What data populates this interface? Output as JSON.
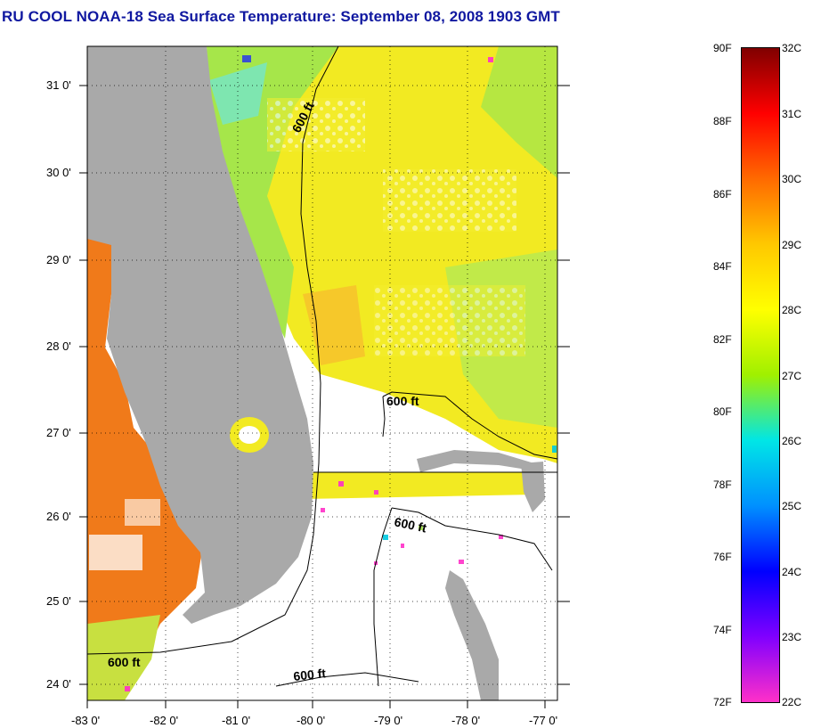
{
  "header": {
    "title": "RU COOL  NOAA-18  Sea Surface Temperature:  September 08, 2008 1903 GMT"
  },
  "map": {
    "lat_labels": [
      "31 0'",
      "30 0'",
      "29 0'",
      "28 0'",
      "27 0'",
      "26 0'",
      "25 0'",
      "24 0'"
    ],
    "lon_labels": [
      "-83 0'",
      "-82 0'",
      "-81 0'",
      "-80 0'",
      "-79 0'",
      "-78 0'",
      "-77 0'"
    ],
    "isobath_label": "600 ft",
    "colors": {
      "land": "#a9a9a9",
      "cloud": "#ffffff",
      "warm_gulf": "#f07a1a",
      "atlantic_yellow": "#f2ea22",
      "atlantic_green": "#a6e64a"
    }
  },
  "colorbar": {
    "fahrenheit": [
      "90F",
      "88F",
      "86F",
      "84F",
      "82F",
      "80F",
      "78F",
      "76F",
      "74F",
      "72F"
    ],
    "celsius": [
      "32C",
      "31C",
      "30C",
      "29C",
      "28C",
      "27C",
      "26C",
      "25C",
      "24C",
      "23C",
      "22C"
    ],
    "gradient": [
      "#800000",
      "#ff0000",
      "#ff6a00",
      "#ffc800",
      "#ffff00",
      "#a0f000",
      "#00e6e6",
      "#0090ff",
      "#0000ff",
      "#8000ff",
      "#ff30c8"
    ]
  }
}
